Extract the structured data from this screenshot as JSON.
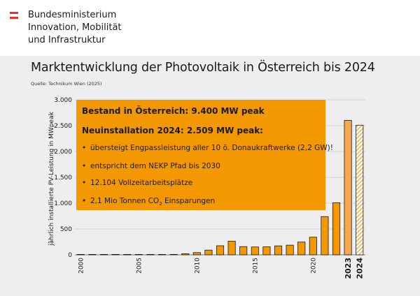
{
  "ministry": {
    "lines": [
      "Bundesministerium",
      "Innovation, Mobilität",
      "und Infrastruktur"
    ]
  },
  "colors": {
    "accent": "#f39800",
    "flag_red": "#e6322b",
    "panel_bg": "#eeeef0"
  },
  "chart_data": {
    "type": "bar",
    "title": "Marktentwicklung der Photovoltaik in Österreich bis 2024",
    "source": "Quelle: Technikum Wien (2025)",
    "ylabel": "jährlich installierte PV-Leistung in MWpeak",
    "xlabel": "",
    "ylim": [
      0,
      3000
    ],
    "yticks": [
      0,
      500,
      1000,
      1500,
      2000,
      2500,
      3000
    ],
    "ytick_labels": [
      "0",
      "500",
      "1.000",
      "1.500",
      "2.000",
      "2.500",
      "3.000"
    ],
    "xtick_labels": [
      "2000",
      "2005",
      "2010",
      "2015",
      "2020",
      "2023",
      "2024"
    ],
    "grid": true,
    "categories": [
      2000,
      2001,
      2002,
      2003,
      2004,
      2005,
      2006,
      2007,
      2008,
      2009,
      2010,
      2011,
      2012,
      2013,
      2014,
      2015,
      2016,
      2017,
      2018,
      2019,
      2020,
      2021,
      2022,
      2023,
      2024
    ],
    "values": [
      1,
      1,
      3,
      6,
      4,
      2,
      2,
      2,
      5,
      20,
      43,
      91,
      176,
      263,
      159,
      152,
      154,
      173,
      187,
      247,
      341,
      740,
      1009,
      2603,
      2509
    ],
    "hatched_last": true
  },
  "infobox": {
    "heading1": "Bestand in Österreich: 9.400 MW peak",
    "heading2": "Neuinstallation 2024: 2.509 MW peak:",
    "bullets": [
      "übersteigt Engpassleistung aller 10 ö. Donaukraftwerke (2,2 GW)!",
      "entspricht dem NEKP Pfad bis 2030",
      "12.104 Vollzeitarbeitsplätze"
    ],
    "co2_prefix": "2,1 Mio Tonnen CO",
    "co2_sub": "2",
    "co2_suffix": " Einsparungen",
    "bullet_symbol": "•"
  }
}
